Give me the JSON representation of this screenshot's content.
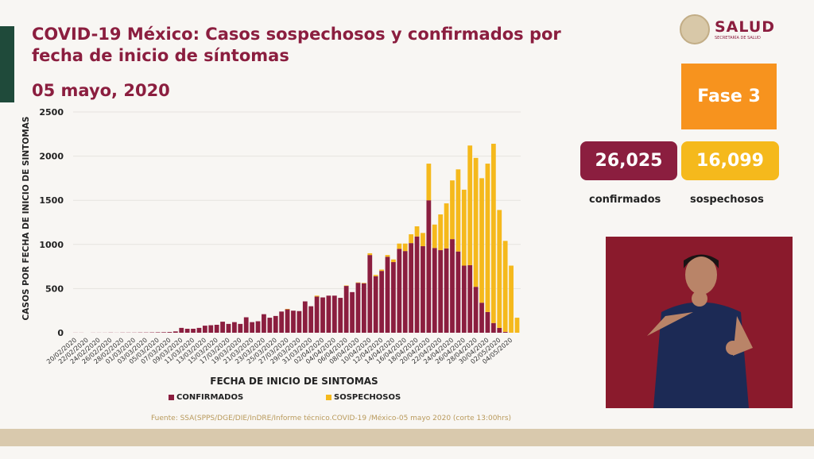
{
  "header": {
    "title": "COVID-19 México: Casos sospechosos y confirmados por fecha de inicio de síntomas",
    "date": "05 mayo, 2020"
  },
  "logo": {
    "name": "SALUD",
    "subtitle": "SECRETARÍA DE SALUD"
  },
  "phase": "Fase 3",
  "totals": {
    "confirmed_value": "26,025",
    "confirmed_label": "confirmados",
    "suspected_value": "16,099",
    "suspected_label": "sospechosos"
  },
  "source": "Fuente: SSA(SPPS/DGE/DIE/InDRE/Informe técnico.COVID-19 /México-05 mayo 2020 (corte 13:00hrs)",
  "colors": {
    "confirmed": "#8b1e3f",
    "suspected": "#f5b91c",
    "accent": "#f7931e"
  },
  "chart_data": {
    "type": "bar",
    "stacked": true,
    "xlabel": "FECHA DE INICIO DE SINTOMAS",
    "ylabel": "CASOS POR FECHA DE INICIO DE SINTOMAS",
    "ylim": [
      0,
      2500
    ],
    "yticks": [
      0,
      500,
      1000,
      1500,
      2000,
      2500
    ],
    "grid": true,
    "legend": "bottom",
    "start_date": "20/02/2020",
    "end_date": "05/05/2020",
    "tick_labels": [
      "20/02/2020",
      "22/02/2020",
      "24/02/2020",
      "26/02/2020",
      "28/02/2020",
      "01/03/2020",
      "03/03/2020",
      "05/03/2020",
      "07/03/2020",
      "09/03/2020",
      "11/03/2020",
      "13/03/2020",
      "15/03/2020",
      "17/03/2020",
      "19/03/2020",
      "21/03/2020",
      "23/03/2020",
      "25/03/2020",
      "27/03/2020",
      "29/03/2020",
      "31/03/2020",
      "02/04/2020",
      "04/04/2020",
      "06/04/2020",
      "08/04/2020",
      "10/04/2020",
      "12/04/2020",
      "14/04/2020",
      "16/04/2020",
      "18/04/2020",
      "20/04/2020",
      "22/04/2020",
      "24/04/2020",
      "26/04/2020",
      "28/04/2020",
      "30/04/2020",
      "02/05/2020",
      "04/05/2020"
    ],
    "series": [
      {
        "name": "CONFIRMADOS",
        "values": [
          1,
          1,
          0,
          1,
          1,
          1,
          2,
          1,
          2,
          2,
          2,
          3,
          3,
          4,
          5,
          6,
          8,
          15,
          55,
          45,
          45,
          55,
          80,
          85,
          90,
          125,
          100,
          120,
          100,
          175,
          120,
          130,
          210,
          170,
          190,
          240,
          265,
          250,
          245,
          355,
          300,
          410,
          400,
          420,
          420,
          395,
          530,
          460,
          565,
          560,
          880,
          640,
          700,
          860,
          800,
          950,
          925,
          1015,
          1090,
          980,
          1500,
          960,
          935,
          955,
          1060,
          920,
          760,
          765,
          520,
          340,
          235,
          110,
          55,
          10,
          0,
          0
        ]
      },
      {
        "name": "SOSPECHOSOS",
        "values": [
          0,
          0,
          0,
          0,
          0,
          0,
          0,
          0,
          0,
          0,
          0,
          0,
          0,
          0,
          0,
          0,
          0,
          0,
          0,
          0,
          0,
          0,
          0,
          0,
          0,
          0,
          0,
          0,
          0,
          0,
          0,
          0,
          0,
          0,
          0,
          0,
          5,
          0,
          0,
          0,
          0,
          10,
          0,
          0,
          0,
          0,
          5,
          0,
          5,
          5,
          20,
          15,
          15,
          20,
          30,
          60,
          85,
          100,
          115,
          150,
          415,
          265,
          405,
          510,
          665,
          930,
          860,
          1355,
          1460,
          1410,
          1680,
          2030,
          1335,
          1030,
          760,
          170
        ]
      }
    ]
  }
}
